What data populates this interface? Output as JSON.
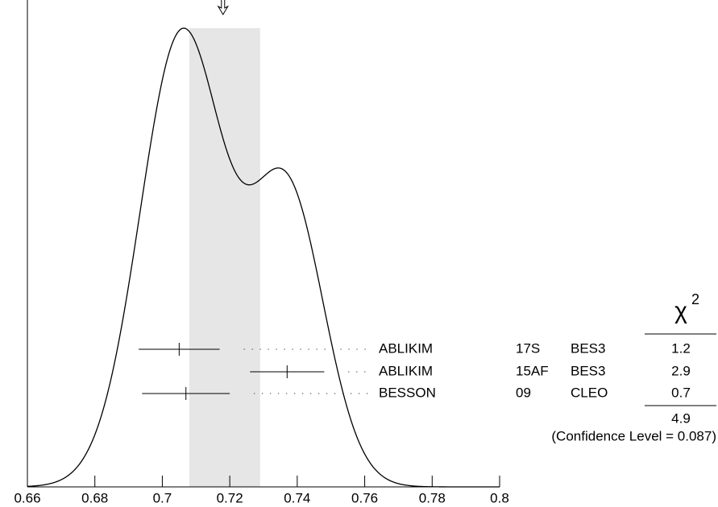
{
  "chart_data": {
    "type": "ideogram",
    "xlim": [
      0.66,
      0.8
    ],
    "xticks": [
      0.66,
      0.68,
      0.7,
      0.72,
      0.74,
      0.76,
      0.78,
      0.8
    ],
    "average": 0.718,
    "band": [
      0.708,
      0.729
    ],
    "band_color": "#e6e6e6",
    "measurements": [
      {
        "name": "ABLIKIM",
        "tag": "17S",
        "experiment": "BES3",
        "value": 0.705,
        "error": 0.012,
        "chi2": 1.2
      },
      {
        "name": "ABLIKIM",
        "tag": "15AF",
        "experiment": "BES3",
        "value": 0.737,
        "error": 0.011,
        "chi2": 2.9
      },
      {
        "name": "BESSON",
        "tag": "09",
        "experiment": "CLEO",
        "value": 0.707,
        "error": 0.013,
        "chi2": 0.7
      }
    ],
    "chi2_symbol": "χ",
    "chi2_sup": "2",
    "chi2_total": 4.9,
    "confidence_label": "(Confidence Level = 0.087)"
  }
}
